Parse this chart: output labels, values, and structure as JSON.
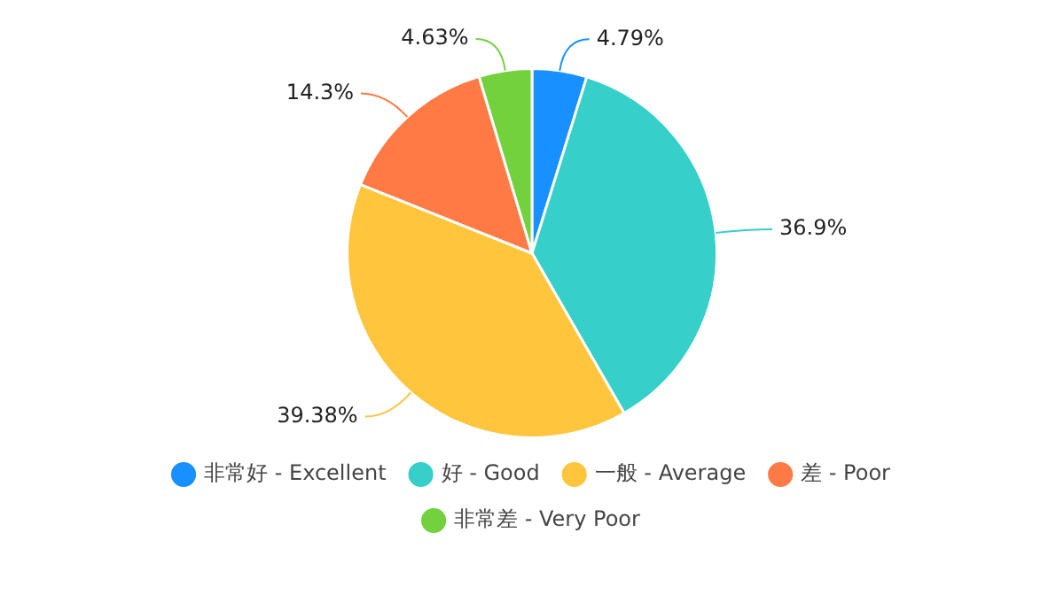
{
  "chart_data": {
    "type": "pie",
    "categories": [
      "非常好 - Excellent",
      "好 - Good",
      "一般 - Average",
      "差 - Poor",
      "非常差 - Very Poor"
    ],
    "values": [
      4.79,
      36.9,
      39.38,
      14.3,
      4.63
    ],
    "value_labels": [
      "4.79%",
      "36.9%",
      "39.38%",
      "14.3%",
      "4.63%"
    ],
    "colors": [
      "#1890ff",
      "#36cfc9",
      "#ffc53d",
      "#ff7a45",
      "#73d13d"
    ],
    "legend": "bottom"
  }
}
